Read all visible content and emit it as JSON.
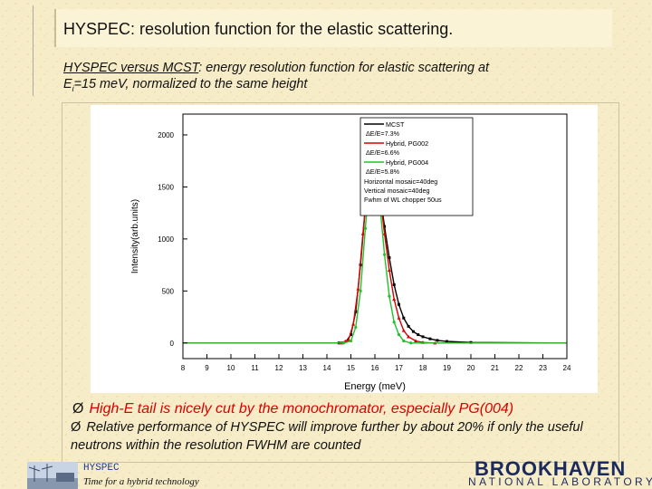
{
  "slide": {
    "title_prefix": "HYSPEC",
    "title_rest": ": resolution function for the elastic scattering.",
    "caption_underlined": "HYSPEC versus MCST",
    "caption_rest": ": energy resolution function for elastic scattering at",
    "caption_line2_a": "E",
    "caption_line2_sub": "i",
    "caption_line2_b": "=15 meV, normalized to the same height",
    "bullet1": "High-E tail is nicely cut by the monochromator, especially PG(004)",
    "bullet2": "Relative performance of HYSPEC will improve further by about 20% if only the useful neutrons within the resolution FWHM are counted",
    "bullet_marker": "Ø",
    "footer_hyspec": "HYSPEC",
    "footer_tagline": "Time for a hybrid technology",
    "brand": "BROOKHAVEN",
    "brand_sub": "NATIONAL LABORATORY",
    "accent_red": "#d90000",
    "brand_color": "#1b2a5e"
  },
  "chart_data": {
    "type": "line",
    "xlabel": "Energy (meV)",
    "ylabel": "Intensity(arb.units)",
    "xlim": [
      8,
      24
    ],
    "ylim": [
      -150,
      2200
    ],
    "xticks": [
      "8",
      "9",
      "10",
      "11",
      "12",
      "13",
      "14",
      "15",
      "16",
      "17",
      "18",
      "19",
      "20",
      "21",
      "22",
      "23",
      "24"
    ],
    "yticks": [
      0,
      500,
      1000,
      1500,
      2000
    ],
    "ytick_labels": [
      "0",
      "500",
      "1000",
      "1500",
      "2000"
    ],
    "legend_position": "top-right",
    "legend_notes": [
      "Horizontal mosaic=40deg",
      "Vertical mosaic=40deg",
      "Fwhm of WL chopper 50us"
    ],
    "series": [
      {
        "name": "MCST",
        "note": "ΔE/E=7.3%",
        "color": "#000000",
        "marker": "square",
        "x": [
          8,
          14.5,
          14.8,
          15.0,
          15.2,
          15.4,
          15.6,
          15.8,
          15.9,
          16.0,
          16.1,
          16.2,
          16.4,
          16.6,
          16.8,
          17.0,
          17.2,
          17.4,
          17.6,
          17.8,
          18.0,
          18.3,
          18.6,
          19.0,
          20,
          24
        ],
        "y": [
          0,
          0,
          15,
          80,
          300,
          750,
          1300,
          1700,
          1820,
          1780,
          1640,
          1450,
          1120,
          820,
          560,
          370,
          240,
          160,
          110,
          80,
          60,
          40,
          25,
          15,
          5,
          0
        ]
      },
      {
        "name": "Hybrid, PG002",
        "note": "ΔE/E=6.6%",
        "color": "#d90000",
        "marker": "triangle",
        "x": [
          8,
          14.6,
          14.9,
          15.1,
          15.3,
          15.5,
          15.7,
          15.9,
          16.0,
          16.1,
          16.2,
          16.4,
          16.6,
          16.8,
          17.0,
          17.2,
          17.4,
          17.7,
          18.0,
          18.5,
          24
        ],
        "y": [
          0,
          0,
          30,
          180,
          520,
          1050,
          1550,
          1850,
          1800,
          1650,
          1450,
          1050,
          700,
          420,
          240,
          120,
          60,
          20,
          5,
          0,
          0
        ]
      },
      {
        "name": "Hybrid, PG004",
        "note": "ΔE/E=5.8%",
        "color": "#22c22e",
        "marker": "circle",
        "x": [
          8,
          14.7,
          15.0,
          15.2,
          15.4,
          15.6,
          15.8,
          15.9,
          16.0,
          16.1,
          16.2,
          16.4,
          16.6,
          16.8,
          17.0,
          17.2,
          17.5,
          24
        ],
        "y": [
          0,
          0,
          20,
          150,
          500,
          1100,
          1650,
          1830,
          1780,
          1600,
          1350,
          850,
          450,
          200,
          80,
          20,
          0,
          0
        ]
      }
    ]
  }
}
